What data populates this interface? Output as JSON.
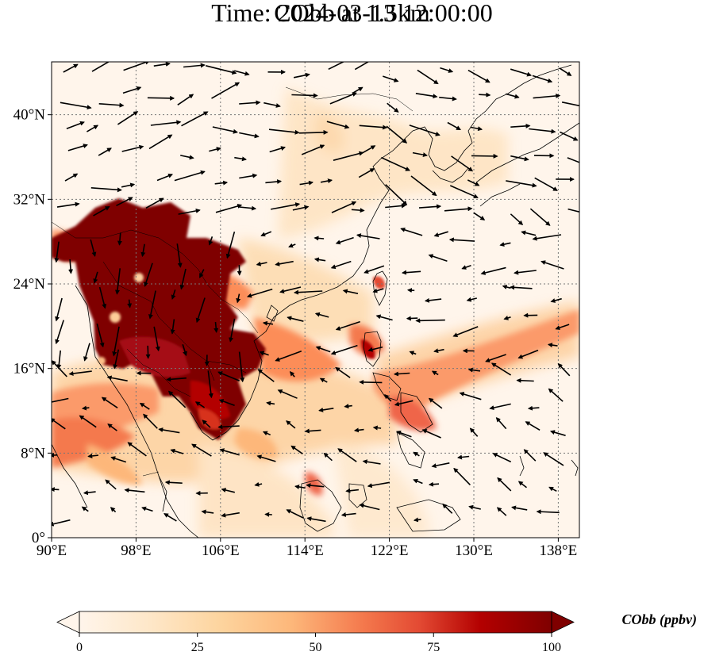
{
  "title": {
    "line1": "CObb at 1.5km",
    "line2": "Time: 2024-03-13 12:00:00"
  },
  "map": {
    "variable": "CObb",
    "level": "1.5km",
    "lon_range": [
      90,
      140
    ],
    "lat_range": [
      0,
      45
    ],
    "lon_ticks": [
      "90°E",
      "98°E",
      "106°E",
      "114°E",
      "122°E",
      "130°E",
      "138°E"
    ],
    "lat_ticks": [
      "0°",
      "8°N",
      "16°N",
      "24°N",
      "32°N",
      "40°N"
    ],
    "gridlines": true,
    "colormap": "OrRd",
    "background_color": "#fff5eb",
    "high_concentration_color": "#7f0000"
  },
  "colorbar": {
    "label": "CObb (ppbv)",
    "min": 0,
    "max": 100,
    "ticks": [
      "0",
      "25",
      "50",
      "75",
      "100"
    ],
    "extend": "both",
    "orientation": "horizontal"
  }
}
